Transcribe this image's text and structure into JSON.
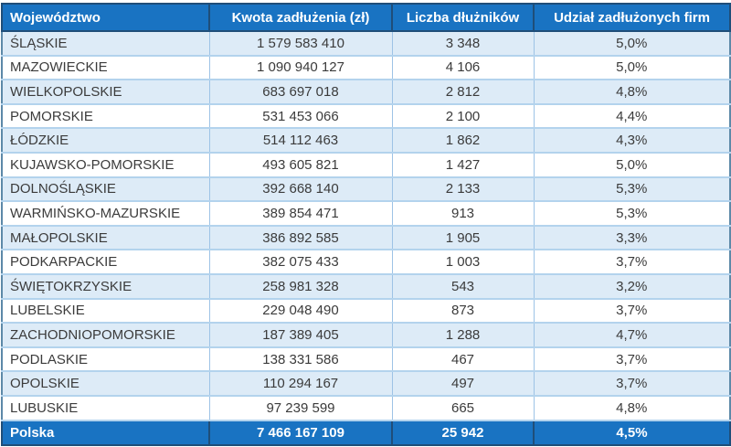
{
  "chart_data": {
    "type": "table",
    "columns": [
      "Województwo",
      "Kwota zadłużenia (zł)",
      "Liczba dłużników",
      "Udział zadłużonych firm"
    ],
    "rows": [
      [
        "ŚLĄSKIE",
        "1 579 583 410",
        "3 348",
        "5,0%"
      ],
      [
        "MAZOWIECKIE",
        "1 090 940 127",
        "4 106",
        "5,0%"
      ],
      [
        "WIELKOPOLSKIE",
        "683 697 018",
        "2 812",
        "4,8%"
      ],
      [
        "POMORSKIE",
        "531 453 066",
        "2 100",
        "4,4%"
      ],
      [
        "ŁÓDZKIE",
        "514 112 463",
        "1 862",
        "4,3%"
      ],
      [
        "KUJAWSKO-POMORSKIE",
        "493 605 821",
        "1 427",
        "5,0%"
      ],
      [
        "DOLNOŚLĄSKIE",
        "392 668 140",
        "2 133",
        "5,3%"
      ],
      [
        "WARMIŃSKO-MAZURSKIE",
        "389 854 471",
        "913",
        "5,3%"
      ],
      [
        "MAŁOPOLSKIE",
        "386 892 585",
        "1 905",
        "3,3%"
      ],
      [
        "PODKARPACKIE",
        "382 075 433",
        "1 003",
        "3,7%"
      ],
      [
        "ŚWIĘTOKRZYSKIE",
        "258 981 328",
        "543",
        "3,2%"
      ],
      [
        "LUBELSKIE",
        "229 048 490",
        "873",
        "3,7%"
      ],
      [
        "ZACHODNIOPOMORSKIE",
        "187 389 405",
        "1 288",
        "4,7%"
      ],
      [
        "PODLASKIE",
        "138 331 586",
        "467",
        "3,7%"
      ],
      [
        "OPOLSKIE",
        "110 294 167",
        "497",
        "3,7%"
      ],
      [
        "LUBUSKIE",
        "97 239 599",
        "665",
        "4,8%"
      ]
    ],
    "footer": [
      "Polska",
      "7 466 167 109",
      "25 942",
      "4,5%"
    ],
    "layout": {
      "zebra_striping": true,
      "stripe_starts_on_first_row": true,
      "column_alignment": [
        "left",
        "center",
        "center",
        "center"
      ]
    }
  },
  "colors": {
    "header_bg": "#1973C2",
    "header_text": "#FFFFFF",
    "header_border": "#1F4E79",
    "row_stripe": "#DDEBF7",
    "row_plain": "#FFFFFF",
    "row_separator": "#B3D3ED",
    "column_separator": "#9DC3E6",
    "outer_body_border": "#5D89A8",
    "body_text": "#3B3B3B",
    "total_row_bg": "#1973C2",
    "total_row_text": "#FFFFFF"
  }
}
